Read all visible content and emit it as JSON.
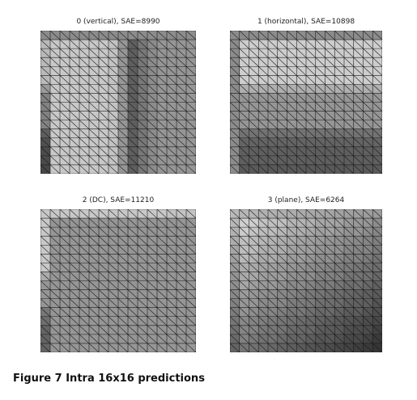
{
  "panels": [
    {
      "title": "0 (vertical), SAE=8990",
      "mode": "vertical"
    },
    {
      "title": "1 (horizontal), SAE=10898",
      "mode": "horizontal"
    },
    {
      "title": "2 (DC), SAE=11210",
      "mode": "dc"
    },
    {
      "title": "3 (plane), SAE=6264",
      "mode": "plane"
    }
  ],
  "caption": "Figure 7 Intra 16x16 predictions",
  "grid_size": 16
}
